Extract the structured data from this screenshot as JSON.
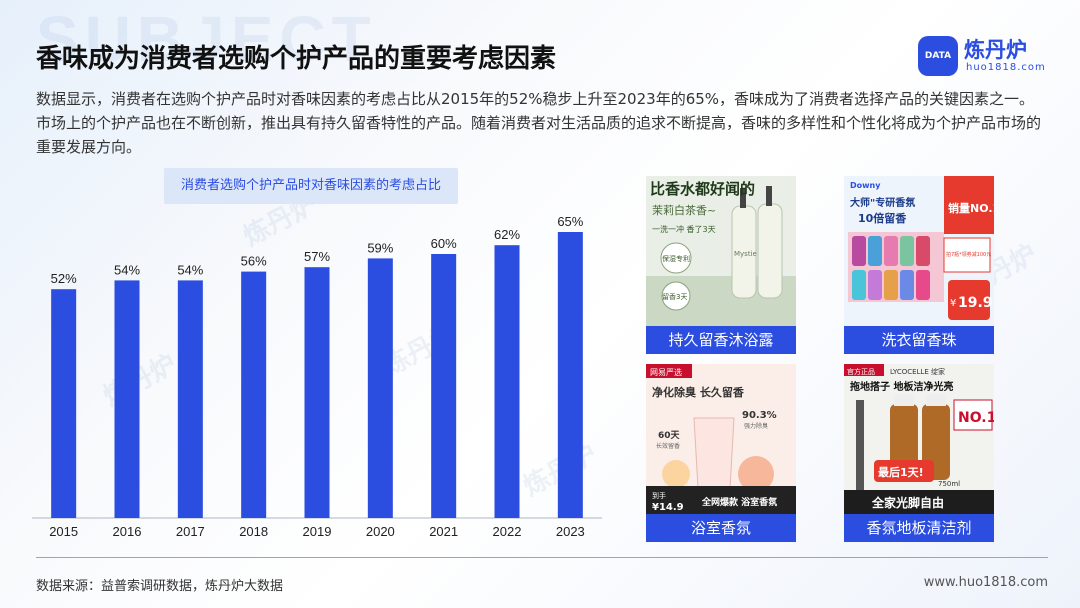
{
  "header": {
    "bg_word": "SUBJECT",
    "title": "香味成为消费者选购个护产品的重要考虑因素",
    "logo_name": "炼丹炉",
    "logo_url": "huo1818.com",
    "logo_mark_text": "DATA"
  },
  "description": "数据显示，消费者在选购个护产品时对香味因素的考虑占比从2015年的52%稳步上升至2023年的65%，香味成为了消费者选择产品的关键因素之一。市场上的个护产品也在不断创新，推出具有持久留香特性的产品。随着消费者对生活品质的追求不断提高，香味的多样性和个性化将成为个护产品市场的重要发展方向。",
  "watermark_text": "炼丹炉",
  "chart_data": {
    "type": "bar",
    "title": "消费者选购个护产品时对香味因素的考虑占比",
    "categories": [
      "2015",
      "2016",
      "2017",
      "2018",
      "2019",
      "2020",
      "2021",
      "2022",
      "2023"
    ],
    "values": [
      52,
      54,
      54,
      56,
      57,
      59,
      60,
      62,
      65
    ],
    "value_suffix": "%",
    "xlabel": "",
    "ylabel": "",
    "ylim": [
      0,
      70
    ],
    "grid": false,
    "bar_color": "#2b4de0"
  },
  "products": [
    {
      "caption": "持久留香沐浴露",
      "headline": "比香水都好闻的",
      "subline": "茉莉白茶香~",
      "tag_line": "一洗一冲 香了3天",
      "badge1": "保湿专利",
      "badge2": "留香3天",
      "bottle_label": "Mystie"
    },
    {
      "caption": "洗衣留香珠",
      "brand": "Downy",
      "headline": "大师\"专研香氛",
      "subline": "10倍留香",
      "sales_tag": "销量NO.1",
      "coupon": "拍7瓶*领券减100元",
      "price_prefix": "¥",
      "price": "19.9"
    },
    {
      "caption": "浴室香氛",
      "brand": "网易严选",
      "headline": "净化除臭 长久留香",
      "stat1": "90.3%",
      "stat1_label": "强力除臭",
      "stat2": "60天",
      "stat2_label": "长效留香",
      "price_label": "到手",
      "price": "¥14.9",
      "banner": "全网爆款 浴室香氛"
    },
    {
      "caption": "香氛地板清洁剂",
      "tag": "官方正品",
      "brand": "LYCOCELLE 绽家",
      "headline": "拖地搭子 地板洁净光亮",
      "badge": "NO.1",
      "promo": "最后1天!",
      "volume": "750ml",
      "footer": "全家光脚自由"
    }
  ],
  "footer": {
    "source": "数据来源：益普索调研数据，炼丹炉大数据",
    "url": "www.huo1818.com"
  }
}
